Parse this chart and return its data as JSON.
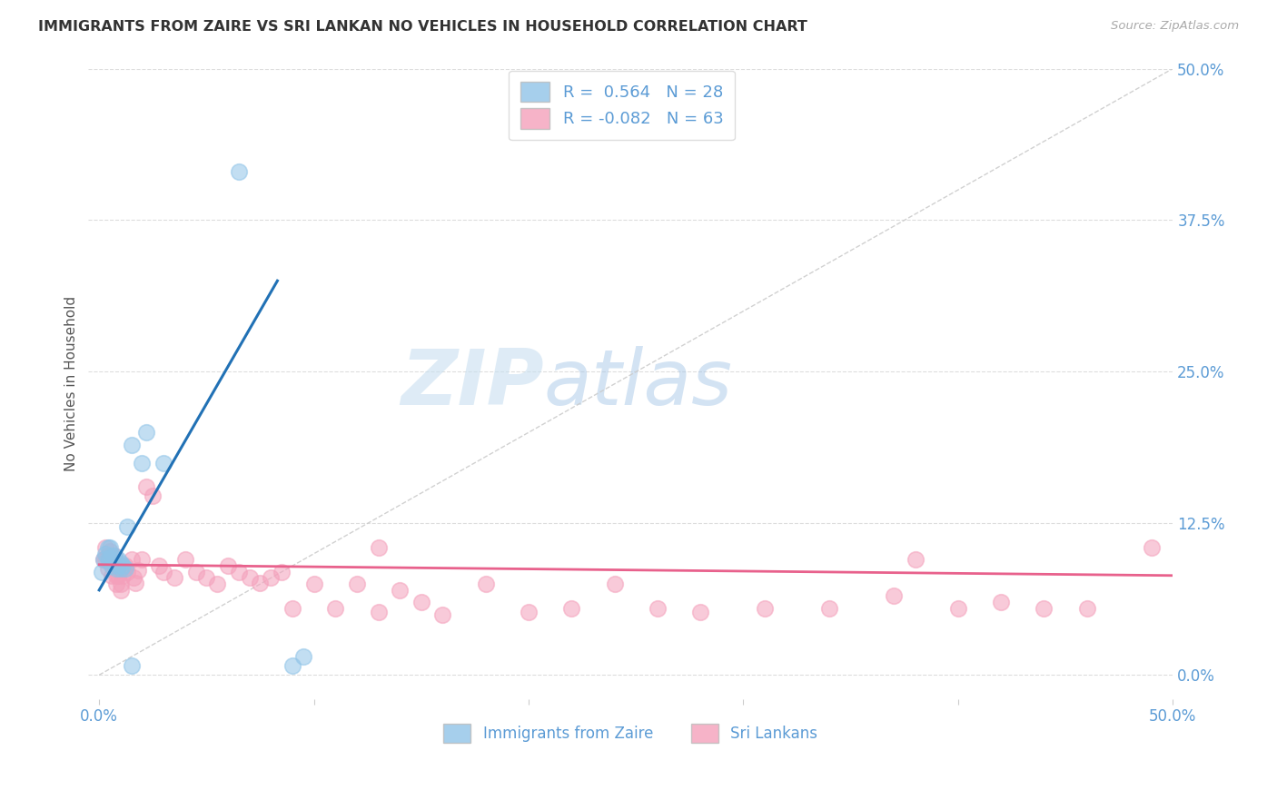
{
  "title": "IMMIGRANTS FROM ZAIRE VS SRI LANKAN NO VEHICLES IN HOUSEHOLD CORRELATION CHART",
  "source": "Source: ZipAtlas.com",
  "ylabel": "No Vehicles in Household",
  "y_tick_labels": [
    "0.0%",
    "12.5%",
    "25.0%",
    "37.5%",
    "50.0%"
  ],
  "y_ticks": [
    0.0,
    0.125,
    0.25,
    0.375,
    0.5
  ],
  "xlim": [
    -0.005,
    0.5
  ],
  "ylim": [
    -0.02,
    0.5
  ],
  "legend_r_blue": "0.564",
  "legend_n_blue": "28",
  "legend_r_pink": "-0.082",
  "legend_n_pink": "63",
  "legend_label_blue": "Immigrants from Zaire",
  "legend_label_pink": "Sri Lankans",
  "blue_color": "#90c4e8",
  "pink_color": "#f4a0bb",
  "blue_line_color": "#2171b5",
  "pink_line_color": "#e8618c",
  "ref_line_color": "#cccccc",
  "watermark_zip": "ZIP",
  "watermark_atlas": "atlas",
  "blue_scatter_x": [
    0.001,
    0.002,
    0.003,
    0.004,
    0.004,
    0.005,
    0.005,
    0.006,
    0.006,
    0.007,
    0.007,
    0.008,
    0.008,
    0.009,
    0.009,
    0.01,
    0.01,
    0.011,
    0.012,
    0.013,
    0.015,
    0.02,
    0.022,
    0.03,
    0.065,
    0.09,
    0.095,
    0.015
  ],
  "blue_scatter_y": [
    0.085,
    0.095,
    0.1,
    0.095,
    0.105,
    0.095,
    0.105,
    0.09,
    0.098,
    0.093,
    0.098,
    0.088,
    0.093,
    0.09,
    0.095,
    0.092,
    0.088,
    0.09,
    0.088,
    0.122,
    0.19,
    0.175,
    0.2,
    0.175,
    0.415,
    0.008,
    0.015,
    0.008
  ],
  "pink_scatter_x": [
    0.002,
    0.003,
    0.003,
    0.004,
    0.004,
    0.005,
    0.005,
    0.006,
    0.006,
    0.007,
    0.007,
    0.008,
    0.008,
    0.009,
    0.01,
    0.01,
    0.011,
    0.012,
    0.013,
    0.015,
    0.016,
    0.017,
    0.018,
    0.02,
    0.022,
    0.025,
    0.028,
    0.03,
    0.035,
    0.04,
    0.045,
    0.05,
    0.055,
    0.06,
    0.065,
    0.07,
    0.075,
    0.08,
    0.085,
    0.09,
    0.1,
    0.11,
    0.12,
    0.13,
    0.14,
    0.15,
    0.16,
    0.18,
    0.2,
    0.22,
    0.24,
    0.26,
    0.28,
    0.31,
    0.34,
    0.37,
    0.4,
    0.42,
    0.44,
    0.46,
    0.13,
    0.38,
    0.49
  ],
  "pink_scatter_y": [
    0.095,
    0.095,
    0.105,
    0.088,
    0.098,
    0.092,
    0.102,
    0.082,
    0.092,
    0.09,
    0.098,
    0.082,
    0.075,
    0.082,
    0.075,
    0.07,
    0.082,
    0.09,
    0.085,
    0.095,
    0.08,
    0.076,
    0.086,
    0.095,
    0.155,
    0.148,
    0.09,
    0.085,
    0.08,
    0.095,
    0.085,
    0.08,
    0.075,
    0.09,
    0.085,
    0.08,
    0.076,
    0.08,
    0.085,
    0.055,
    0.075,
    0.055,
    0.075,
    0.052,
    0.07,
    0.06,
    0.05,
    0.075,
    0.052,
    0.055,
    0.075,
    0.055,
    0.052,
    0.055,
    0.055,
    0.065,
    0.055,
    0.06,
    0.055,
    0.055,
    0.105,
    0.095,
    0.105
  ],
  "blue_trend_x0": 0.0,
  "blue_trend_x1": 0.083,
  "blue_trend_y0": 0.07,
  "blue_trend_y1": 0.325,
  "pink_trend_x0": 0.0,
  "pink_trend_x1": 0.5,
  "pink_trend_y0": 0.091,
  "pink_trend_y1": 0.082
}
